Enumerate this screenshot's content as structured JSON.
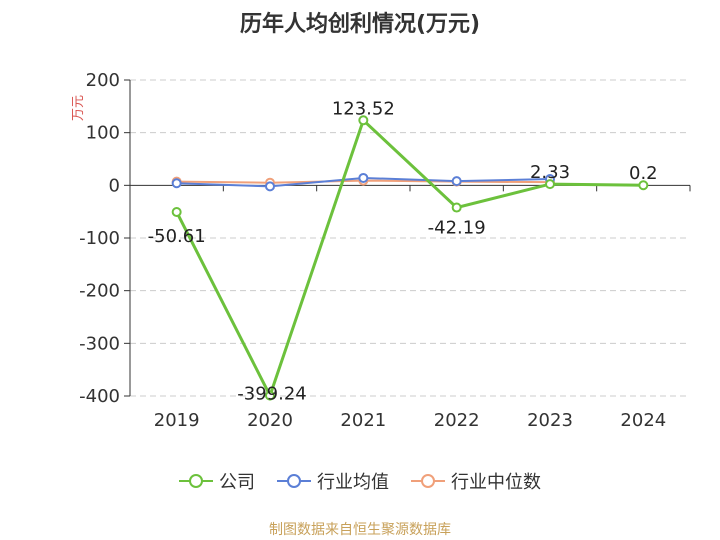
{
  "chart_data": {
    "type": "line",
    "title": "历年人均创利情况(万元)",
    "ylabel": "万元",
    "xlabel": "",
    "categories": [
      "2019",
      "2020",
      "2021",
      "2022",
      "2023",
      "2024"
    ],
    "ylim": [
      -400,
      200
    ],
    "yticks": [
      200,
      100,
      0,
      -100,
      -200,
      -300,
      -400
    ],
    "grid": true,
    "legend_position": "bottom",
    "series": [
      {
        "name": "公司",
        "color": "#6cc13c",
        "values": [
          -50.61,
          -399.24,
          123.52,
          -42.19,
          2.33,
          0.2
        ],
        "labels": [
          "-50.61",
          "-399.24",
          "123.52",
          "-42.19",
          "2.33",
          "0.2"
        ]
      },
      {
        "name": "行业均值",
        "color": "#5b7fd6",
        "values": [
          4,
          -2,
          14,
          8,
          12,
          null
        ]
      },
      {
        "name": "行业中位数",
        "color": "#f0a07a",
        "values": [
          7,
          5,
          9,
          7,
          6,
          null
        ]
      }
    ]
  },
  "source_text": "制图数据来自恒生聚源数据库",
  "source_color": "#c8a15a"
}
